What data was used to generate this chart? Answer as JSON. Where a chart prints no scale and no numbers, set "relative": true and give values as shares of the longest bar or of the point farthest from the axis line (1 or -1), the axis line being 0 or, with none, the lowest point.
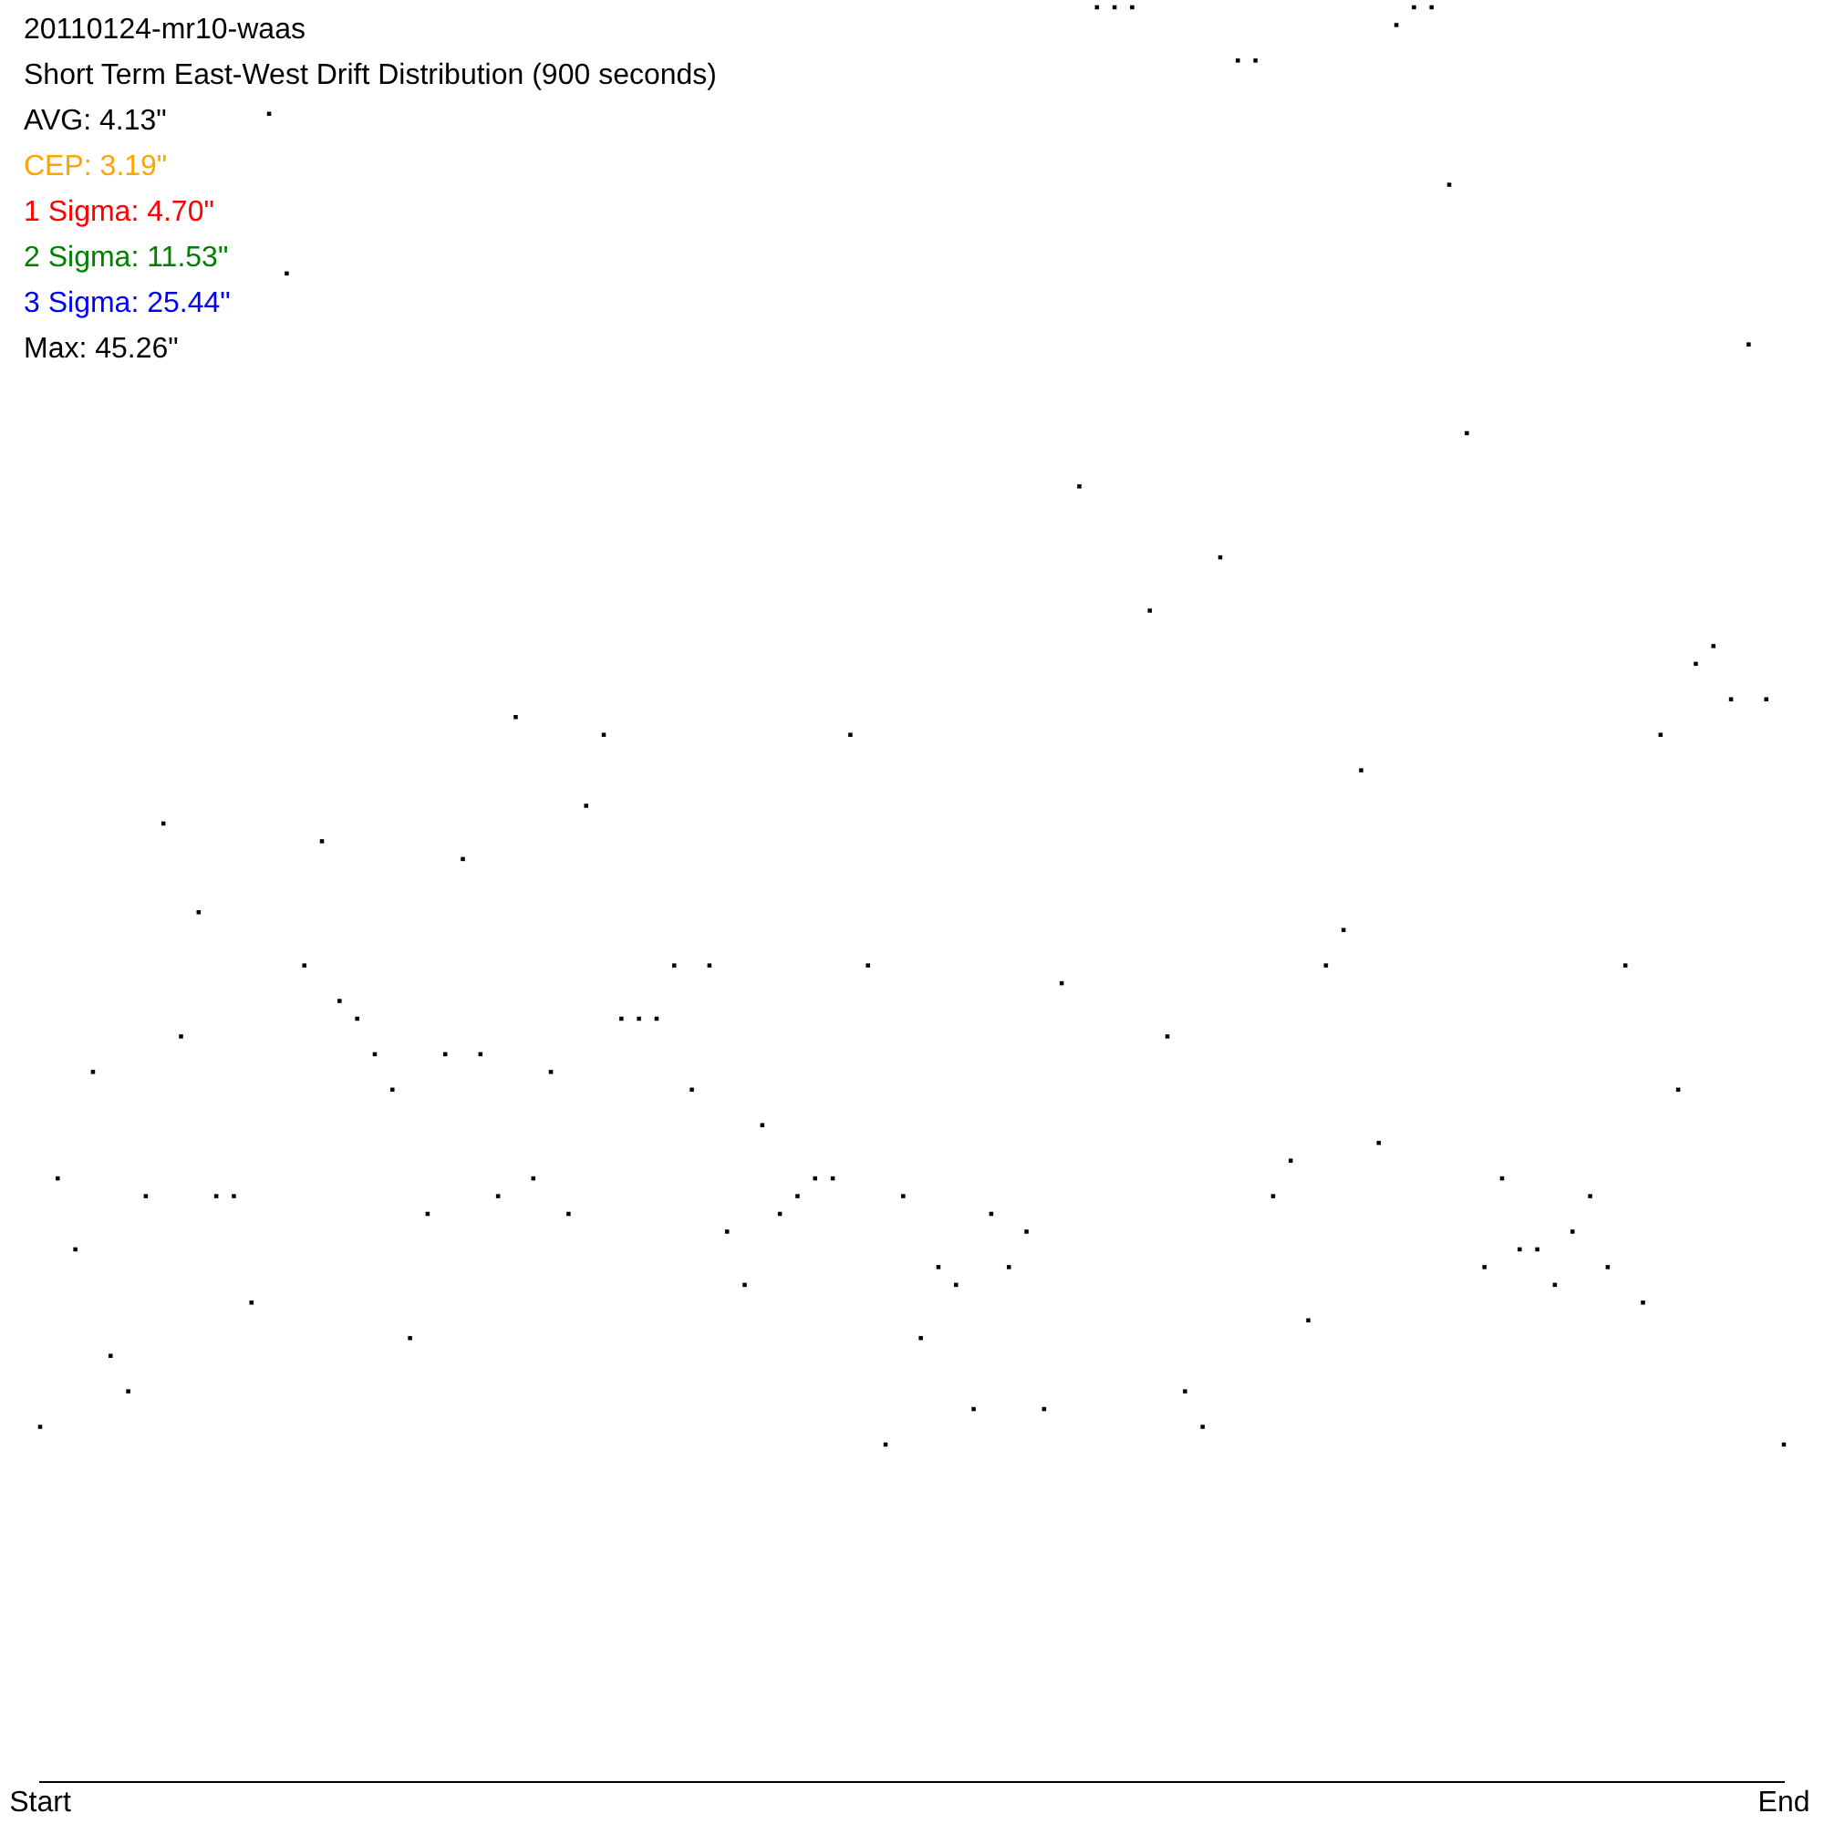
{
  "chart_data": {
    "type": "scatter",
    "title": "20110124-mr10-waas",
    "subtitle": "Short Term East-West Drift Distribution (900 seconds)",
    "annotations": [
      "AVG: 4.13\"",
      "CEP: 3.19\"",
      "1 Sigma: 4.70\"",
      "2 Sigma: 11.53\"",
      "3 Sigma: 25.44\"",
      "Max: 45.26\""
    ],
    "categories": [
      "Start",
      null,
      null,
      null,
      null,
      null,
      null,
      null,
      null,
      null,
      null,
      null,
      null,
      null,
      null,
      null,
      null,
      null,
      null,
      null,
      null,
      null,
      null,
      null,
      null,
      null,
      null,
      null,
      null,
      null,
      null,
      null,
      null,
      null,
      null,
      null,
      null,
      null,
      null,
      null,
      null,
      null,
      null,
      null,
      null,
      null,
      null,
      null,
      null,
      null,
      null,
      null,
      null,
      null,
      null,
      null,
      null,
      null,
      null,
      null,
      null,
      null,
      null,
      null,
      null,
      null,
      null,
      null,
      null,
      null,
      null,
      null,
      null,
      null,
      null,
      null,
      null,
      null,
      null,
      null,
      null,
      null,
      null,
      null,
      null,
      null,
      null,
      null,
      null,
      null,
      null,
      null,
      null,
      null,
      null,
      null,
      null,
      null,
      null,
      "End"
    ],
    "relative": true,
    "series": [
      {
        "color": "#000000",
        "values": [
          0.2,
          0.34,
          0.3,
          0.4,
          0.24,
          0.22,
          0.33,
          0.54,
          0.42,
          0.49,
          0.33,
          0.33,
          0.27,
          0.94,
          0.85,
          0.46,
          0.53,
          0.44,
          0.43,
          0.41,
          0.39,
          0.25,
          0.32,
          0.41,
          0.52,
          0.41,
          0.33,
          0.6,
          0.34,
          0.4,
          0.32,
          0.55,
          0.59,
          0.43,
          0.43,
          0.43,
          0.46,
          0.39,
          0.46,
          0.31,
          0.28,
          0.37,
          0.32,
          0.33,
          0.34,
          0.34,
          0.59,
          0.46,
          0.19,
          0.33,
          0.25,
          0.29,
          0.28,
          0.21,
          0.32,
          0.29,
          0.31,
          0.21,
          0.45,
          0.73,
          1,
          1,
          1,
          0.66,
          0.42,
          0.22,
          0.2,
          0.69,
          0.97,
          0.97,
          0.33,
          0.35,
          0.26,
          0.46,
          0.48,
          0.57,
          0.36,
          0.99,
          1,
          1,
          0.9,
          0.76,
          0.29,
          0.34,
          0.3,
          0.3,
          0.28,
          0.31,
          0.33,
          0.29,
          0.46,
          0.27,
          0.59,
          0.39,
          0.63,
          0.64,
          0.61,
          0.81,
          0.61,
          0.19
        ]
      }
    ],
    "marker": "square",
    "grid": false,
    "legend": false
  }
}
